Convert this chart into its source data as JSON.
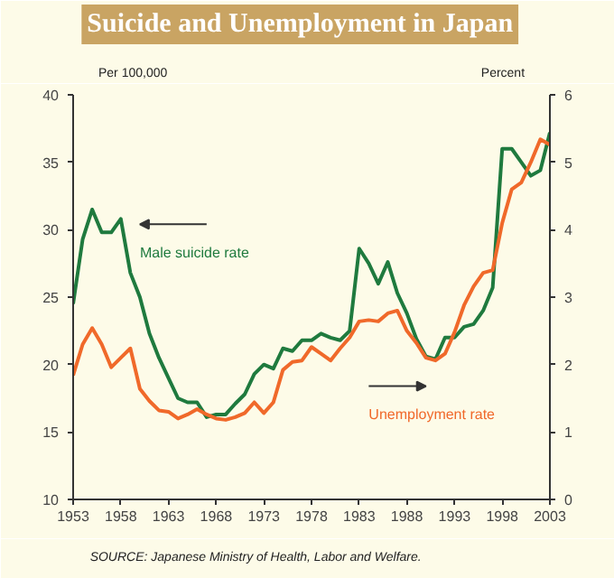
{
  "chart_data": {
    "type": "line",
    "title": "Suicide and Unemployment in Japan",
    "ylabel": "Per 100,000",
    "y2label": "Percent",
    "x": [
      1953,
      1954,
      1955,
      1956,
      1957,
      1958,
      1959,
      1960,
      1961,
      1962,
      1963,
      1964,
      1965,
      1966,
      1967,
      1968,
      1969,
      1970,
      1971,
      1972,
      1973,
      1974,
      1975,
      1976,
      1977,
      1978,
      1979,
      1980,
      1981,
      1982,
      1983,
      1984,
      1985,
      1986,
      1987,
      1988,
      1989,
      1990,
      1991,
      1992,
      1993,
      1994,
      1995,
      1996,
      1997,
      1998,
      1999,
      2000,
      2001,
      2002,
      2003
    ],
    "series": [
      {
        "name": "Male suicide rate",
        "color": "#1f7a3e",
        "values": [
          24.5,
          29.3,
          31.5,
          29.8,
          29.8,
          30.8,
          26.8,
          25,
          22.3,
          20.5,
          19,
          17.5,
          17.2,
          17.2,
          16.1,
          16.3,
          16.3,
          17.1,
          17.8,
          19.3,
          20,
          19.7,
          21.2,
          21,
          21.8,
          21.8,
          22.3,
          22,
          21.8,
          22.5,
          28.6,
          27.5,
          26,
          27.6,
          25.3,
          23.8,
          21.9,
          20.6,
          20.4,
          22,
          22,
          22.8,
          23,
          24,
          25.7,
          36,
          36,
          35,
          34,
          34.4,
          37.2
        ]
      },
      {
        "name": "Unemployment rate",
        "color": "#f0692a",
        "axis": "y2",
        "values": [
          1.84,
          2.3,
          2.54,
          2.3,
          1.96,
          2.1,
          2.24,
          1.64,
          1.46,
          1.32,
          1.3,
          1.2,
          1.26,
          1.34,
          1.26,
          1.2,
          1.18,
          1.22,
          1.28,
          1.44,
          1.28,
          1.44,
          1.92,
          2.04,
          2.06,
          2.26,
          2.16,
          2.06,
          2.24,
          2.4,
          2.64,
          2.66,
          2.64,
          2.76,
          2.8,
          2.5,
          2.32,
          2.1,
          2.06,
          2.16,
          2.48,
          2.88,
          3.16,
          3.36,
          3.4,
          4.1,
          4.6,
          4.7,
          5.0,
          5.34,
          5.26
        ]
      }
    ],
    "xlim": [
      1953,
      2003
    ],
    "xticks": [
      1953,
      1958,
      1963,
      1968,
      1973,
      1978,
      1983,
      1988,
      1993,
      1998,
      2003
    ],
    "ylim": [
      10,
      40
    ],
    "yticks": [
      10,
      15,
      20,
      25,
      30,
      35,
      40
    ],
    "y2lim": [
      0,
      6
    ],
    "y2ticks": [
      0,
      1,
      2,
      3,
      4,
      5,
      6
    ],
    "grid": false,
    "annotations": [
      "SOURCE: Japanese Ministry of Health, Labor and Welfare."
    ]
  }
}
